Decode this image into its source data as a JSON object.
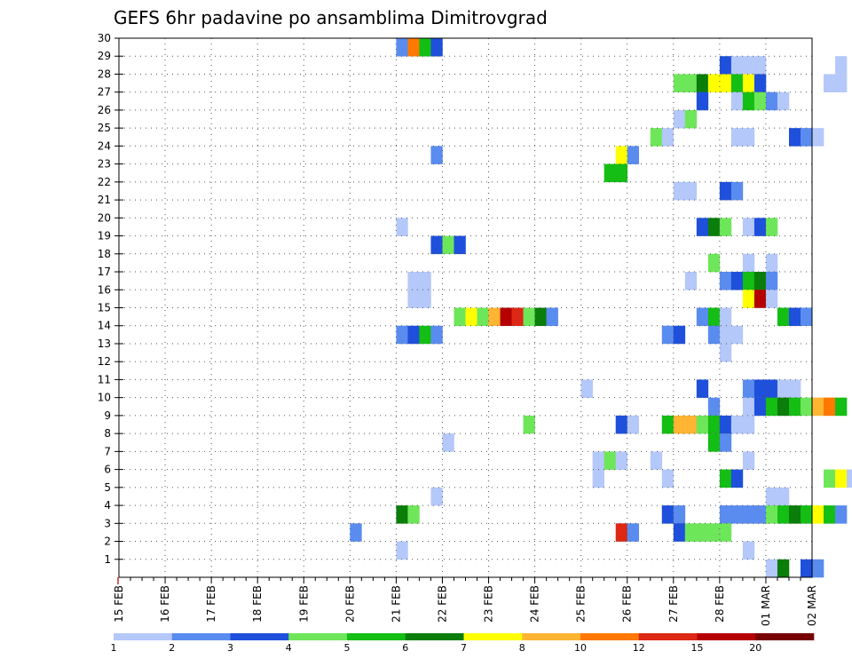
{
  "chart_data": {
    "type": "heatmap",
    "title": "GEFS 6hr padavine po ansamblima Dimitrovgrad",
    "xlabel": "",
    "ylabel": "",
    "x_tick_labels": [
      "15 FEB",
      "16 FEB",
      "17 FEB",
      "18 FEB",
      "19 FEB",
      "20 FEB",
      "21 FEB",
      "22 FEB",
      "23 FEB",
      "24 FEB",
      "25 FEB",
      "26 FEB",
      "27 FEB",
      "28 FEB",
      "01 MAR",
      "02 MAR"
    ],
    "x_range_days": [
      0,
      15
    ],
    "y_tick_labels": [
      "1",
      "2",
      "3",
      "4",
      "5",
      "6",
      "7",
      "8",
      "9",
      "10",
      "11",
      "12",
      "13",
      "14",
      "15",
      "16",
      "17",
      "18",
      "19",
      "20",
      "21",
      "22",
      "23",
      "24",
      "25",
      "26",
      "27",
      "28",
      "29",
      "30"
    ],
    "y_range": [
      0,
      30
    ],
    "grid": true,
    "time_step_hours": 6,
    "legend": {
      "placement": "bottom",
      "labels": [
        "1",
        "2",
        "3",
        "4",
        "5",
        "6",
        "7",
        "8",
        "10",
        "12",
        "15",
        "20"
      ],
      "colors": [
        "#b4c8fa",
        "#5a8cf0",
        "#1e50dc",
        "#6ee65a",
        "#14be14",
        "#0a7d0a",
        "#ffff00",
        "#ffb432",
        "#ff7800",
        "#dc2814",
        "#b40000",
        "#780000"
      ]
    },
    "cells": [
      {
        "m": 30,
        "t": "21 FEB 00",
        "c": 1
      },
      {
        "m": 30,
        "t": "21 FEB 06",
        "c": 8
      },
      {
        "m": 30,
        "t": "21 FEB 12",
        "c": 4
      },
      {
        "m": 30,
        "t": "21 FEB 18",
        "c": 2
      },
      {
        "m": 29,
        "t": "28 FEB 00",
        "c": 2
      },
      {
        "m": 29,
        "t": "28 FEB 06",
        "c": 0
      },
      {
        "m": 29,
        "t": "28 FEB 12",
        "c": 0
      },
      {
        "m": 29,
        "t": "28 FEB 18",
        "c": 0
      },
      {
        "m": 29,
        "t": "02 MAR 12",
        "c": 0
      },
      {
        "m": 28,
        "t": "27 FEB 00",
        "c": 3
      },
      {
        "m": 28,
        "t": "27 FEB 06",
        "c": 3
      },
      {
        "m": 28,
        "t": "27 FEB 12",
        "c": 5
      },
      {
        "m": 28,
        "t": "27 FEB 18",
        "c": 6
      },
      {
        "m": 28,
        "t": "28 FEB 00",
        "c": 6
      },
      {
        "m": 28,
        "t": "28 FEB 06",
        "c": 4
      },
      {
        "m": 28,
        "t": "28 FEB 12",
        "c": 6
      },
      {
        "m": 28,
        "t": "28 FEB 18",
        "c": 2
      },
      {
        "m": 28,
        "t": "02 MAR 06",
        "c": 0
      },
      {
        "m": 28,
        "t": "02 MAR 12",
        "c": 0
      },
      {
        "m": 27,
        "t": "27 FEB 12",
        "c": 2
      },
      {
        "m": 27,
        "t": "28 FEB 06",
        "c": 0
      },
      {
        "m": 27,
        "t": "28 FEB 12",
        "c": 4
      },
      {
        "m": 27,
        "t": "28 FEB 18",
        "c": 3
      },
      {
        "m": 27,
        "t": "01 MAR 00",
        "c": 1
      },
      {
        "m": 27,
        "t": "01 MAR 06",
        "c": 0
      },
      {
        "m": 26,
        "t": "27 FEB 00",
        "c": 0
      },
      {
        "m": 26,
        "t": "27 FEB 06",
        "c": 3
      },
      {
        "m": 25,
        "t": "26 FEB 12",
        "c": 3
      },
      {
        "m": 25,
        "t": "26 FEB 18",
        "c": 0
      },
      {
        "m": 25,
        "t": "28 FEB 06",
        "c": 0
      },
      {
        "m": 25,
        "t": "28 FEB 12",
        "c": 0
      },
      {
        "m": 25,
        "t": "01 MAR 12",
        "c": 2
      },
      {
        "m": 25,
        "t": "01 MAR 18",
        "c": 1
      },
      {
        "m": 25,
        "t": "02 MAR 00",
        "c": 0
      },
      {
        "m": 24,
        "t": "21 FEB 18",
        "c": 1
      },
      {
        "m": 24,
        "t": "25 FEB 18",
        "c": 6
      },
      {
        "m": 24,
        "t": "26 FEB 00",
        "c": 1
      },
      {
        "m": 23,
        "t": "25 FEB 12",
        "c": 4
      },
      {
        "m": 23,
        "t": "25 FEB 18",
        "c": 4
      },
      {
        "m": 22,
        "t": "27 FEB 00",
        "c": 0
      },
      {
        "m": 22,
        "t": "27 FEB 06",
        "c": 0
      },
      {
        "m": 22,
        "t": "28 FEB 00",
        "c": 2
      },
      {
        "m": 22,
        "t": "28 FEB 06",
        "c": 1
      },
      {
        "m": 20,
        "t": "21 FEB 00",
        "c": 0
      },
      {
        "m": 20,
        "t": "27 FEB 12",
        "c": 2
      },
      {
        "m": 20,
        "t": "27 FEB 18",
        "c": 5
      },
      {
        "m": 20,
        "t": "28 FEB 00",
        "c": 3
      },
      {
        "m": 20,
        "t": "28 FEB 12",
        "c": 0
      },
      {
        "m": 20,
        "t": "28 FEB 18",
        "c": 2
      },
      {
        "m": 20,
        "t": "01 MAR 00",
        "c": 3
      },
      {
        "m": 19,
        "t": "21 FEB 18",
        "c": 2
      },
      {
        "m": 19,
        "t": "22 FEB 00",
        "c": 3
      },
      {
        "m": 19,
        "t": "22 FEB 06",
        "c": 2
      },
      {
        "m": 18,
        "t": "27 FEB 18",
        "c": 3
      },
      {
        "m": 18,
        "t": "28 FEB 12",
        "c": 0
      },
      {
        "m": 18,
        "t": "01 MAR 00",
        "c": 0
      },
      {
        "m": 17,
        "t": "21 FEB 06",
        "c": 0
      },
      {
        "m": 17,
        "t": "21 FEB 12",
        "c": 0
      },
      {
        "m": 17,
        "t": "27 FEB 06",
        "c": 0
      },
      {
        "m": 17,
        "t": "28 FEB 00",
        "c": 1
      },
      {
        "m": 17,
        "t": "28 FEB 06",
        "c": 2
      },
      {
        "m": 17,
        "t": "28 FEB 12",
        "c": 4
      },
      {
        "m": 17,
        "t": "28 FEB 18",
        "c": 5
      },
      {
        "m": 17,
        "t": "01 MAR 00",
        "c": 1
      },
      {
        "m": 16,
        "t": "21 FEB 06",
        "c": 0
      },
      {
        "m": 16,
        "t": "21 FEB 12",
        "c": 0
      },
      {
        "m": 16,
        "t": "28 FEB 12",
        "c": 6
      },
      {
        "m": 16,
        "t": "28 FEB 18",
        "c": 10
      },
      {
        "m": 16,
        "t": "01 MAR 00",
        "c": 0
      },
      {
        "m": 15,
        "t": "22 FEB 06",
        "c": 3
      },
      {
        "m": 15,
        "t": "22 FEB 12",
        "c": 6
      },
      {
        "m": 15,
        "t": "22 FEB 18",
        "c": 3
      },
      {
        "m": 15,
        "t": "23 FEB 00",
        "c": 7
      },
      {
        "m": 15,
        "t": "23 FEB 06",
        "c": 10
      },
      {
        "m": 15,
        "t": "23 FEB 12",
        "c": 9
      },
      {
        "m": 15,
        "t": "23 FEB 18",
        "c": 3
      },
      {
        "m": 15,
        "t": "24 FEB 00",
        "c": 5
      },
      {
        "m": 15,
        "t": "24 FEB 06",
        "c": 1
      },
      {
        "m": 15,
        "t": "27 FEB 12",
        "c": 1
      },
      {
        "m": 15,
        "t": "27 FEB 18",
        "c": 4
      },
      {
        "m": 15,
        "t": "28 FEB 00",
        "c": 0
      },
      {
        "m": 15,
        "t": "01 MAR 06",
        "c": 4
      },
      {
        "m": 15,
        "t": "01 MAR 12",
        "c": 2
      },
      {
        "m": 15,
        "t": "01 MAR 18",
        "c": 1
      },
      {
        "m": 14,
        "t": "21 FEB 00",
        "c": 1
      },
      {
        "m": 14,
        "t": "21 FEB 06",
        "c": 2
      },
      {
        "m": 14,
        "t": "21 FEB 12",
        "c": 4
      },
      {
        "m": 14,
        "t": "21 FEB 18",
        "c": 1
      },
      {
        "m": 14,
        "t": "26 FEB 18",
        "c": 1
      },
      {
        "m": 14,
        "t": "27 FEB 00",
        "c": 2
      },
      {
        "m": 14,
        "t": "27 FEB 18",
        "c": 1
      },
      {
        "m": 14,
        "t": "28 FEB 00",
        "c": 0
      },
      {
        "m": 14,
        "t": "28 FEB 06",
        "c": 0
      },
      {
        "m": 13,
        "t": "28 FEB 00",
        "c": 0
      },
      {
        "m": 11,
        "t": "25 FEB 00",
        "c": 0
      },
      {
        "m": 11,
        "t": "27 FEB 12",
        "c": 2
      },
      {
        "m": 11,
        "t": "28 FEB 12",
        "c": 1
      },
      {
        "m": 11,
        "t": "28 FEB 18",
        "c": 2
      },
      {
        "m": 11,
        "t": "01 MAR 00",
        "c": 2
      },
      {
        "m": 11,
        "t": "01 MAR 06",
        "c": 0
      },
      {
        "m": 11,
        "t": "01 MAR 12",
        "c": 0
      },
      {
        "m": 10,
        "t": "27 FEB 18",
        "c": 1
      },
      {
        "m": 10,
        "t": "28 FEB 12",
        "c": 0
      },
      {
        "m": 10,
        "t": "28 FEB 18",
        "c": 2
      },
      {
        "m": 10,
        "t": "01 MAR 00",
        "c": 4
      },
      {
        "m": 10,
        "t": "01 MAR 06",
        "c": 5
      },
      {
        "m": 10,
        "t": "01 MAR 12",
        "c": 4
      },
      {
        "m": 10,
        "t": "01 MAR 18",
        "c": 3
      },
      {
        "m": 10,
        "t": "02 MAR 00",
        "c": 7
      },
      {
        "m": 10,
        "t": "02 MAR 06",
        "c": 8
      },
      {
        "m": 10,
        "t": "02 MAR 12",
        "c": 4
      },
      {
        "m": 9,
        "t": "23 FEB 18",
        "c": 3
      },
      {
        "m": 9,
        "t": "25 FEB 18",
        "c": 2
      },
      {
        "m": 9,
        "t": "26 FEB 00",
        "c": 0
      },
      {
        "m": 9,
        "t": "26 FEB 18",
        "c": 4
      },
      {
        "m": 9,
        "t": "27 FEB 00",
        "c": 7
      },
      {
        "m": 9,
        "t": "27 FEB 06",
        "c": 7
      },
      {
        "m": 9,
        "t": "27 FEB 12",
        "c": 3
      },
      {
        "m": 9,
        "t": "27 FEB 18",
        "c": 4
      },
      {
        "m": 9,
        "t": "28 FEB 00",
        "c": 2
      },
      {
        "m": 9,
        "t": "28 FEB 06",
        "c": 0
      },
      {
        "m": 9,
        "t": "28 FEB 12",
        "c": 0
      },
      {
        "m": 8,
        "t": "22 FEB 00",
        "c": 0
      },
      {
        "m": 8,
        "t": "27 FEB 18",
        "c": 4
      },
      {
        "m": 8,
        "t": "28 FEB 00",
        "c": 1
      },
      {
        "m": 7,
        "t": "25 FEB 06",
        "c": 0
      },
      {
        "m": 7,
        "t": "25 FEB 12",
        "c": 3
      },
      {
        "m": 7,
        "t": "25 FEB 18",
        "c": 0
      },
      {
        "m": 7,
        "t": "26 FEB 12",
        "c": 0
      },
      {
        "m": 7,
        "t": "28 FEB 12",
        "c": 0
      },
      {
        "m": 6,
        "t": "25 FEB 06",
        "c": 0
      },
      {
        "m": 6,
        "t": "26 FEB 18",
        "c": 0
      },
      {
        "m": 6,
        "t": "28 FEB 00",
        "c": 4
      },
      {
        "m": 6,
        "t": "28 FEB 06",
        "c": 2
      },
      {
        "m": 6,
        "t": "02 MAR 06",
        "c": 3
      },
      {
        "m": 6,
        "t": "02 MAR 12",
        "c": 6
      },
      {
        "m": 6,
        "t": "02 MAR 18",
        "c": 0
      },
      {
        "m": 5,
        "t": "21 FEB 18",
        "c": 0
      },
      {
        "m": 5,
        "t": "01 MAR 00",
        "c": 0
      },
      {
        "m": 5,
        "t": "01 MAR 06",
        "c": 0
      },
      {
        "m": 4,
        "t": "21 FEB 00",
        "c": 5
      },
      {
        "m": 4,
        "t": "21 FEB 06",
        "c": 3
      },
      {
        "m": 4,
        "t": "26 FEB 18",
        "c": 2
      },
      {
        "m": 4,
        "t": "27 FEB 00",
        "c": 1
      },
      {
        "m": 4,
        "t": "28 FEB 00",
        "c": 1
      },
      {
        "m": 4,
        "t": "28 FEB 06",
        "c": 1
      },
      {
        "m": 4,
        "t": "28 FEB 12",
        "c": 1
      },
      {
        "m": 4,
        "t": "28 FEB 18",
        "c": 1
      },
      {
        "m": 4,
        "t": "01 MAR 00",
        "c": 3
      },
      {
        "m": 4,
        "t": "01 MAR 06",
        "c": 4
      },
      {
        "m": 4,
        "t": "01 MAR 12",
        "c": 5
      },
      {
        "m": 4,
        "t": "01 MAR 18",
        "c": 4
      },
      {
        "m": 4,
        "t": "02 MAR 00",
        "c": 6
      },
      {
        "m": 4,
        "t": "02 MAR 06",
        "c": 4
      },
      {
        "m": 4,
        "t": "02 MAR 12",
        "c": 1
      },
      {
        "m": 3,
        "t": "20 FEB 00",
        "c": 1
      },
      {
        "m": 3,
        "t": "25 FEB 18",
        "c": 9
      },
      {
        "m": 3,
        "t": "26 FEB 00",
        "c": 1
      },
      {
        "m": 3,
        "t": "27 FEB 00",
        "c": 2
      },
      {
        "m": 3,
        "t": "27 FEB 06",
        "c": 3
      },
      {
        "m": 3,
        "t": "27 FEB 12",
        "c": 3
      },
      {
        "m": 3,
        "t": "27 FEB 18",
        "c": 3
      },
      {
        "m": 3,
        "t": "28 FEB 00",
        "c": 3
      },
      {
        "m": 2,
        "t": "21 FEB 00",
        "c": 0
      },
      {
        "m": 2,
        "t": "28 FEB 12",
        "c": 0
      },
      {
        "m": 1,
        "t": "01 MAR 00",
        "c": 0
      },
      {
        "m": 1,
        "t": "01 MAR 06",
        "c": 5
      },
      {
        "m": 1,
        "t": "01 MAR 18",
        "c": 2
      },
      {
        "m": 1,
        "t": "02 MAR 00",
        "c": 1
      }
    ]
  }
}
